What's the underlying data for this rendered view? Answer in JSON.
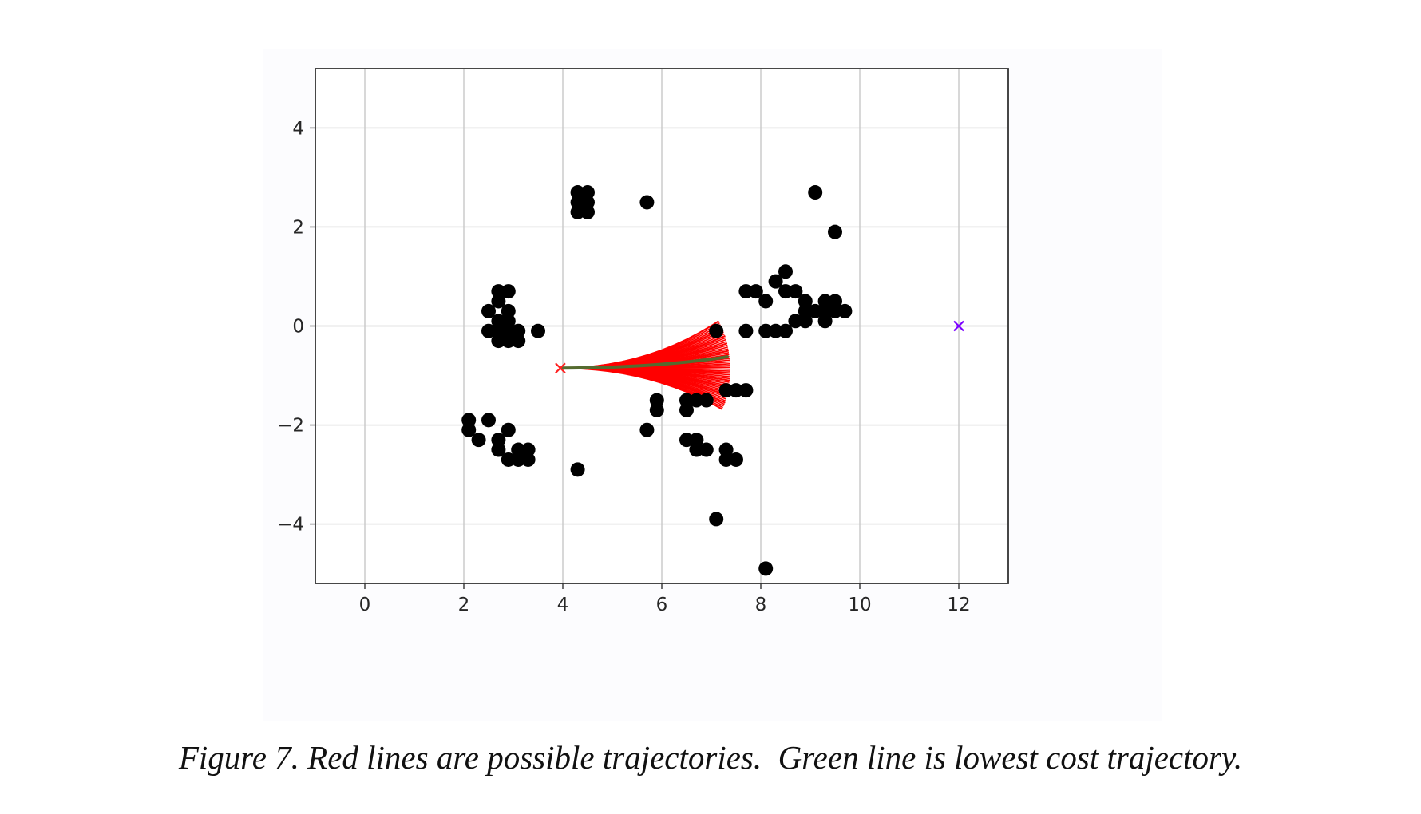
{
  "caption": "Figure 7. Red lines are possible trajectories.  Green line is lowest cost trajectory.",
  "chart_data": {
    "type": "scatter",
    "title": "",
    "xlabel": "",
    "ylabel": "",
    "xlim": [
      -1,
      13
    ],
    "ylim": [
      -5.2,
      5.2
    ],
    "xticks": [
      0,
      2,
      4,
      6,
      8,
      10,
      12
    ],
    "xtick_labels": [
      "0",
      "2",
      "4",
      "6",
      "8",
      "10",
      "12"
    ],
    "yticks": [
      4,
      2,
      0,
      -2,
      -4
    ],
    "ytick_labels": [
      "4",
      "2",
      "0",
      "−2",
      "−4"
    ],
    "grid": true,
    "colors": {
      "obstacles": "#000000",
      "candidate_trajectories": "#ff0000",
      "best_trajectory": "#556b2f",
      "start_marker": "#ff2020",
      "goal_marker": "#7b00ff",
      "grid": "#c8c8c8",
      "axes": "#333333"
    },
    "start": {
      "x": 3.95,
      "y": -0.85,
      "marker": "x"
    },
    "goal": {
      "x": 12.0,
      "y": 0.0,
      "marker": "x"
    },
    "candidate_endpoints": [
      {
        "x": 7.15,
        "y": 0.1
      },
      {
        "x": 7.22,
        "y": -0.05
      },
      {
        "x": 7.28,
        "y": -0.2
      },
      {
        "x": 7.32,
        "y": -0.35
      },
      {
        "x": 7.35,
        "y": -0.5
      },
      {
        "x": 7.37,
        "y": -0.65
      },
      {
        "x": 7.38,
        "y": -0.8
      },
      {
        "x": 7.38,
        "y": -0.95
      },
      {
        "x": 7.37,
        "y": -1.1
      },
      {
        "x": 7.35,
        "y": -1.25
      },
      {
        "x": 7.32,
        "y": -1.4
      },
      {
        "x": 7.28,
        "y": -1.55
      },
      {
        "x": 7.22,
        "y": -1.68
      }
    ],
    "best_endpoint": {
      "x": 7.35,
      "y": -0.62
    },
    "obstacles": [
      {
        "x": 4.3,
        "y": 2.7
      },
      {
        "x": 4.5,
        "y": 2.7
      },
      {
        "x": 4.3,
        "y": 2.5
      },
      {
        "x": 4.5,
        "y": 2.5
      },
      {
        "x": 4.3,
        "y": 2.3
      },
      {
        "x": 4.5,
        "y": 2.3
      },
      {
        "x": 5.7,
        "y": 2.5
      },
      {
        "x": 9.1,
        "y": 2.7
      },
      {
        "x": 9.5,
        "y": 1.9
      },
      {
        "x": 2.7,
        "y": 0.7
      },
      {
        "x": 2.9,
        "y": 0.7
      },
      {
        "x": 2.7,
        "y": 0.5
      },
      {
        "x": 2.5,
        "y": 0.3
      },
      {
        "x": 2.9,
        "y": 0.3
      },
      {
        "x": 2.7,
        "y": 0.1
      },
      {
        "x": 2.9,
        "y": 0.1
      },
      {
        "x": 2.5,
        "y": -0.1
      },
      {
        "x": 2.7,
        "y": -0.1
      },
      {
        "x": 2.9,
        "y": -0.1
      },
      {
        "x": 3.1,
        "y": -0.1
      },
      {
        "x": 2.7,
        "y": -0.3
      },
      {
        "x": 2.9,
        "y": -0.3
      },
      {
        "x": 3.1,
        "y": -0.3
      },
      {
        "x": 3.5,
        "y": -0.1
      },
      {
        "x": 8.5,
        "y": 1.1
      },
      {
        "x": 8.3,
        "y": 0.9
      },
      {
        "x": 8.5,
        "y": 0.7
      },
      {
        "x": 7.7,
        "y": 0.7
      },
      {
        "x": 7.9,
        "y": 0.7
      },
      {
        "x": 8.7,
        "y": 0.7
      },
      {
        "x": 8.1,
        "y": 0.5
      },
      {
        "x": 8.9,
        "y": 0.5
      },
      {
        "x": 9.3,
        "y": 0.5
      },
      {
        "x": 9.5,
        "y": 0.5
      },
      {
        "x": 8.9,
        "y": 0.3
      },
      {
        "x": 9.1,
        "y": 0.3
      },
      {
        "x": 9.3,
        "y": 0.3
      },
      {
        "x": 9.5,
        "y": 0.3
      },
      {
        "x": 9.7,
        "y": 0.3
      },
      {
        "x": 8.7,
        "y": 0.1
      },
      {
        "x": 8.9,
        "y": 0.1
      },
      {
        "x": 9.3,
        "y": 0.1
      },
      {
        "x": 7.1,
        "y": -0.1
      },
      {
        "x": 7.7,
        "y": -0.1
      },
      {
        "x": 8.1,
        "y": -0.1
      },
      {
        "x": 8.3,
        "y": -0.1
      },
      {
        "x": 8.5,
        "y": -0.1
      },
      {
        "x": 7.3,
        "y": -1.3
      },
      {
        "x": 7.5,
        "y": -1.3
      },
      {
        "x": 7.7,
        "y": -1.3
      },
      {
        "x": 5.9,
        "y": -1.5
      },
      {
        "x": 6.5,
        "y": -1.5
      },
      {
        "x": 6.7,
        "y": -1.5
      },
      {
        "x": 6.9,
        "y": -1.5
      },
      {
        "x": 5.9,
        "y": -1.7
      },
      {
        "x": 6.5,
        "y": -1.7
      },
      {
        "x": 5.7,
        "y": -2.1
      },
      {
        "x": 2.1,
        "y": -1.9
      },
      {
        "x": 2.5,
        "y": -1.9
      },
      {
        "x": 2.1,
        "y": -2.1
      },
      {
        "x": 2.9,
        "y": -2.1
      },
      {
        "x": 2.3,
        "y": -2.3
      },
      {
        "x": 2.7,
        "y": -2.3
      },
      {
        "x": 2.7,
        "y": -2.5
      },
      {
        "x": 3.1,
        "y": -2.5
      },
      {
        "x": 3.3,
        "y": -2.5
      },
      {
        "x": 2.9,
        "y": -2.7
      },
      {
        "x": 3.1,
        "y": -2.7
      },
      {
        "x": 3.3,
        "y": -2.7
      },
      {
        "x": 6.5,
        "y": -2.3
      },
      {
        "x": 6.7,
        "y": -2.3
      },
      {
        "x": 6.7,
        "y": -2.5
      },
      {
        "x": 6.9,
        "y": -2.5
      },
      {
        "x": 7.3,
        "y": -2.5
      },
      {
        "x": 7.3,
        "y": -2.7
      },
      {
        "x": 7.5,
        "y": -2.7
      },
      {
        "x": 4.3,
        "y": -2.9
      },
      {
        "x": 7.1,
        "y": -3.9
      },
      {
        "x": 8.1,
        "y": -4.9
      }
    ]
  }
}
